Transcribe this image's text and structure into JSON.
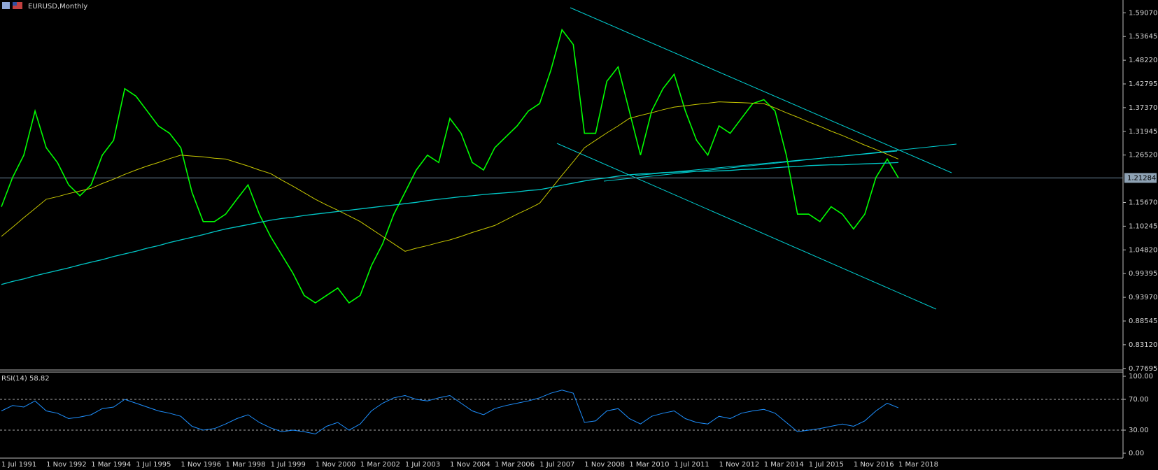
{
  "chart_data": [
    {
      "type": "line",
      "title": "EURUSD,Monthly",
      "categories": [
        "1 Jul 1991",
        null,
        null,
        null,
        "1 Nov 1992",
        null,
        null,
        null,
        "1 Mar 1994",
        null,
        null,
        null,
        "1 Jul 1995",
        null,
        null,
        null,
        "1 Nov 1996",
        null,
        null,
        null,
        "1 Mar 1998",
        null,
        null,
        null,
        "1 Jul 1999",
        null,
        null,
        null,
        "1 Nov 2000",
        null,
        null,
        null,
        "1 Mar 2002",
        null,
        null,
        null,
        "1 Jul 2003",
        null,
        null,
        null,
        "1 Nov 2004",
        null,
        null,
        null,
        "1 Mar 2006",
        null,
        null,
        null,
        "1 Jul 2007",
        null,
        null,
        null,
        "1 Nov 2008",
        null,
        null,
        null,
        "1 Mar 2010",
        null,
        null,
        null,
        "1 Jul 2011",
        null,
        null,
        null,
        "1 Nov 2012",
        null,
        null,
        null,
        "1 Mar 2014",
        null,
        null,
        null,
        "1 Jul 2015",
        null,
        null,
        null,
        "1 Nov 2016",
        null,
        null,
        null,
        "1 Mar 2018"
      ],
      "series": [
        {
          "color": "#00ff00",
          "values": [
            1.147,
            1.214,
            1.265,
            1.366,
            1.282,
            1.248,
            1.197,
            1.172,
            1.197,
            1.265,
            1.299,
            1.417,
            1.4,
            1.366,
            1.332,
            1.315,
            1.282,
            1.18,
            1.113,
            1.113,
            1.13,
            1.164,
            1.197,
            1.13,
            1.079,
            1.037,
            0.995,
            0.944,
            0.927,
            0.944,
            0.961,
            0.927,
            0.944,
            1.012,
            1.062,
            1.13,
            1.18,
            1.231,
            1.265,
            1.248,
            1.349,
            1.315,
            1.248,
            1.231,
            1.282,
            1.307,
            1.332,
            1.366,
            1.383,
            1.459,
            1.552,
            1.518,
            1.315,
            1.315,
            1.434,
            1.467,
            1.366,
            1.265,
            1.366,
            1.417,
            1.45,
            1.366,
            1.299,
            1.265,
            1.332,
            1.315,
            1.349,
            1.383,
            1.392,
            1.366,
            1.265,
            1.13,
            1.13,
            1.113,
            1.147,
            1.13,
            1.096,
            1.13,
            1.214,
            1.256,
            1.213
          ]
        },
        {
          "color": "#c8c800",
          "values": [
            1.079,
            1.1,
            1.122,
            1.143,
            1.164,
            1.17,
            1.177,
            1.183,
            1.189,
            1.2,
            1.21,
            1.221,
            1.231,
            1.24,
            1.248,
            1.257,
            1.265,
            1.263,
            1.261,
            1.258,
            1.256,
            1.248,
            1.24,
            1.231,
            1.223,
            1.208,
            1.194,
            1.179,
            1.164,
            1.151,
            1.139,
            1.126,
            1.113,
            1.096,
            1.079,
            1.062,
            1.045,
            1.052,
            1.058,
            1.065,
            1.071,
            1.079,
            1.088,
            1.096,
            1.104,
            1.117,
            1.13,
            1.142,
            1.155,
            1.187,
            1.219,
            1.25,
            1.282,
            1.299,
            1.316,
            1.332,
            1.349,
            1.356,
            1.362,
            1.369,
            1.375,
            1.378,
            1.381,
            1.384,
            1.387,
            1.386,
            1.385,
            1.384,
            1.383,
            1.373,
            1.362,
            1.352,
            1.341,
            1.331,
            1.32,
            1.31,
            1.299,
            1.288,
            1.278,
            1.267,
            1.256
          ]
        },
        {
          "color": "#00c8c8",
          "values": [
            0.969,
            0.976,
            0.982,
            0.989,
            0.995,
            1.001,
            1.007,
            1.014,
            1.02,
            1.026,
            1.033,
            1.039,
            1.045,
            1.052,
            1.058,
            1.065,
            1.071,
            1.077,
            1.083,
            1.09,
            1.096,
            1.101,
            1.106,
            1.111,
            1.116,
            1.12,
            1.123,
            1.127,
            1.13,
            1.133,
            1.136,
            1.139,
            1.142,
            1.145,
            1.148,
            1.151,
            1.154,
            1.157,
            1.161,
            1.164,
            1.167,
            1.17,
            1.172,
            1.175,
            1.177,
            1.179,
            1.181,
            1.184,
            1.186,
            1.191,
            1.196,
            1.201,
            1.206,
            1.21,
            1.213,
            1.217,
            1.22,
            1.222,
            1.223,
            1.225,
            1.226,
            1.227,
            1.228,
            1.228,
            1.229,
            1.23,
            1.232,
            1.233,
            1.234,
            1.236,
            1.238,
            1.239,
            1.241,
            1.242,
            1.243,
            1.243,
            1.244,
            1.245,
            1.246,
            1.247,
            1.248
          ]
        }
      ],
      "current_price": 1.21284,
      "ylim": [
        0.775,
        1.62
      ],
      "yticks": [
        {
          "value": 1.5907,
          "label": "1.59070"
        },
        1.53645,
        {
          "value": 1.4822,
          "label": "1.48220"
        },
        1.42795,
        {
          "value": 1.3737,
          "label": "1.37370"
        },
        1.31945,
        {
          "value": 1.2652,
          "label": "1.26520"
        },
        {
          "value": 1.1567,
          "label": "1.15670"
        },
        1.10245,
        {
          "value": 1.0482,
          "label": "1.04820"
        },
        0.99395,
        {
          "value": 0.9397,
          "label": "0.93970"
        },
        0.88545,
        {
          "value": 0.8312,
          "label": "0.83120"
        },
        0.77695
      ]
    },
    {
      "type": "line",
      "series": [
        {
          "name": "RSI(14)",
          "color": "#1e90ff",
          "values": [
            55,
            62,
            60,
            68,
            55,
            52,
            45,
            47,
            50,
            58,
            60,
            70,
            65,
            60,
            55,
            52,
            48,
            35,
            30,
            32,
            38,
            45,
            50,
            40,
            33,
            28,
            30,
            28,
            25,
            35,
            40,
            30,
            38,
            55,
            65,
            72,
            75,
            70,
            68,
            72,
            75,
            65,
            55,
            50,
            58,
            62,
            65,
            68,
            72,
            78,
            82,
            78,
            40,
            42,
            55,
            58,
            45,
            38,
            48,
            52,
            55,
            45,
            40,
            38,
            48,
            45,
            52,
            55,
            57,
            52,
            40,
            28,
            30,
            32,
            35,
            38,
            35,
            42,
            55,
            65,
            59
          ]
        }
      ],
      "current": 58.82,
      "ylim": [
        0,
        100
      ],
      "yticks": [
        {
          "value": 100,
          "label": "100.00"
        },
        {
          "value": 70,
          "label": "70.00"
        },
        {
          "value": 30,
          "label": "30.00"
        },
        {
          "value": 0,
          "label": "0.00"
        }
      ]
    }
  ]
}
